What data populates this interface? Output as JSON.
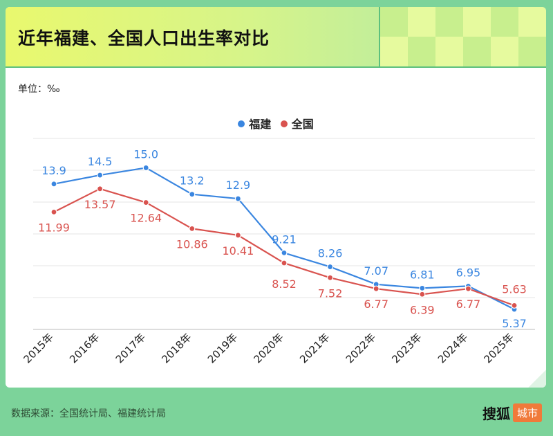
{
  "title": "近年福建、全国人口出生率对比",
  "unit_label": "单位：‰",
  "colors": {
    "fujian": "#3a86e0",
    "national": "#d9534f",
    "grid": "#e4e4e4"
  },
  "chart_data": {
    "type": "line",
    "title": "近年福建、全国人口出生率对比",
    "ylabel": "‰",
    "categories": [
      "2015年",
      "2016年",
      "2017年",
      "2018年",
      "2019年",
      "2020年",
      "2021年",
      "2022年",
      "2023年",
      "2024年",
      "2025年"
    ],
    "ylim": [
      4,
      17
    ],
    "series": [
      {
        "key": "fujian",
        "name": "福建",
        "values": [
          13.9,
          14.5,
          15.0,
          13.2,
          12.9,
          9.21,
          8.26,
          7.07,
          6.81,
          6.95,
          5.37
        ],
        "labels": [
          "13.9",
          "14.5",
          "15.0",
          "13.2",
          "12.9",
          "9.21",
          "8.26",
          "7.07",
          "6.81",
          "6.95",
          "5.37"
        ]
      },
      {
        "key": "national",
        "name": "全国",
        "values": [
          11.99,
          13.57,
          12.64,
          10.86,
          10.41,
          8.52,
          7.52,
          6.77,
          6.39,
          6.77,
          5.63
        ],
        "labels": [
          "11.99",
          "13.57",
          "12.64",
          "10.86",
          "10.41",
          "8.52",
          "7.52",
          "6.77",
          "6.39",
          "6.77",
          "5.63"
        ]
      }
    ]
  },
  "footer": {
    "source": "数据来源：全国统计局、福建统计局",
    "brand_name": "搜狐",
    "brand_tag": "城市"
  }
}
